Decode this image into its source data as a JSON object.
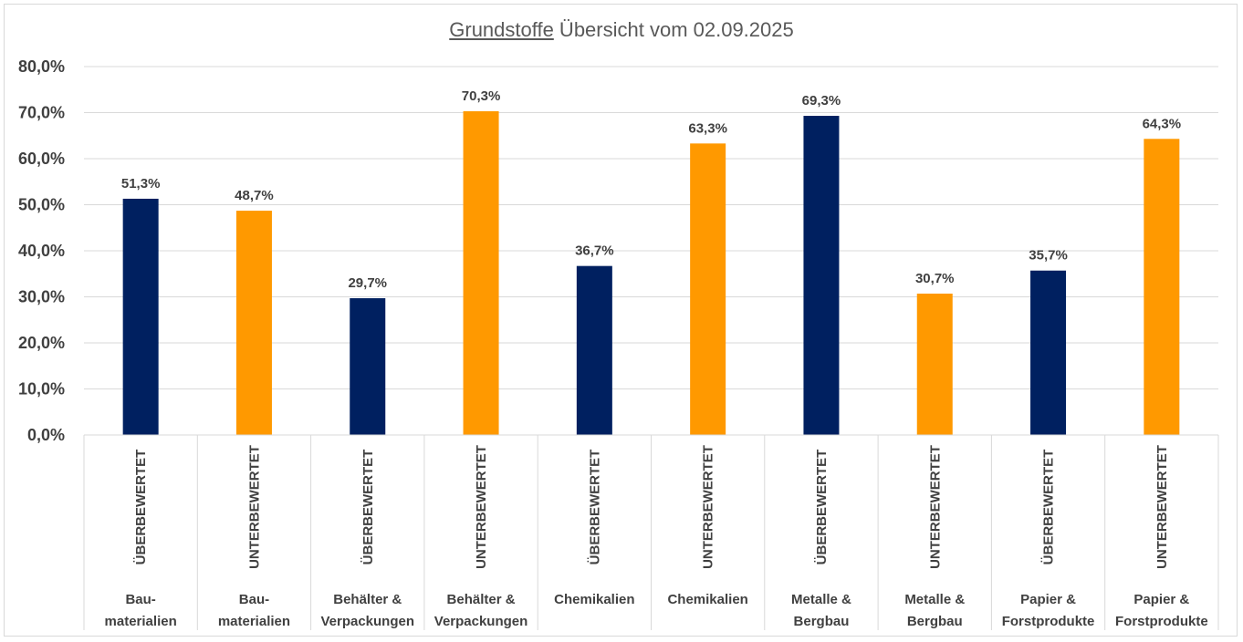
{
  "chart_data": {
    "type": "bar",
    "title": {
      "underlined": "Grundstoffe",
      "rest": " Übersicht vom 02.09.2025"
    },
    "ylim": [
      0,
      80
    ],
    "yticks": [
      "0,0%",
      "10,0%",
      "20,0%",
      "30,0%",
      "40,0%",
      "50,0%",
      "60,0%",
      "70,0%",
      "80,0%"
    ],
    "grid": true,
    "colors": {
      "ÜBERBEWERTET": "#002060",
      "UNTERBEWERTET": "#FF9900"
    },
    "bars": [
      {
        "category": [
          "Bau-",
          "materialien"
        ],
        "status": "ÜBERBEWERTET",
        "value": 51.3,
        "label": "51,3%"
      },
      {
        "category": [
          "Bau-",
          "materialien"
        ],
        "status": "UNTERBEWERTET",
        "value": 48.7,
        "label": "48,7%"
      },
      {
        "category": [
          "Behälter &",
          "Verpackungen"
        ],
        "status": "ÜBERBEWERTET",
        "value": 29.7,
        "label": "29,7%"
      },
      {
        "category": [
          "Behälter &",
          "Verpackungen"
        ],
        "status": "UNTERBEWERTET",
        "value": 70.3,
        "label": "70,3%"
      },
      {
        "category": [
          "Chemikalien"
        ],
        "status": "ÜBERBEWERTET",
        "value": 36.7,
        "label": "36,7%"
      },
      {
        "category": [
          "Chemikalien"
        ],
        "status": "UNTERBEWERTET",
        "value": 63.3,
        "label": "63,3%"
      },
      {
        "category": [
          "Metalle &",
          "Bergbau"
        ],
        "status": "ÜBERBEWERTET",
        "value": 69.3,
        "label": "69,3%"
      },
      {
        "category": [
          "Metalle &",
          "Bergbau"
        ],
        "status": "UNTERBEWERTET",
        "value": 30.7,
        "label": "30,7%"
      },
      {
        "category": [
          "Papier &",
          "Forstprodukte"
        ],
        "status": "ÜBERBEWERTET",
        "value": 35.7,
        "label": "35,7%"
      },
      {
        "category": [
          "Papier &",
          "Forstprodukte"
        ],
        "status": "UNTERBEWERTET",
        "value": 64.3,
        "label": "64,3%"
      }
    ]
  }
}
